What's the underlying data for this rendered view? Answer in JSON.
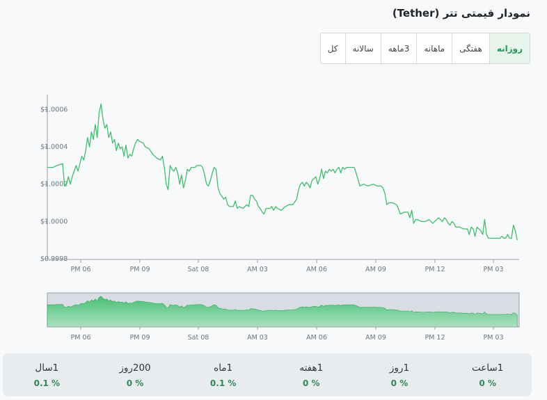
{
  "header": {
    "title": "نمودار قیمتی تتر (Tether)"
  },
  "tabs": [
    {
      "label": "روزانه",
      "active": true
    },
    {
      "label": "هفتگی",
      "active": false
    },
    {
      "label": "ماهانه",
      "active": false
    },
    {
      "label": "3ماهه",
      "active": false
    },
    {
      "label": "سالانه",
      "active": false
    },
    {
      "label": "کل",
      "active": false
    }
  ],
  "colors": {
    "line": "#3cbf6a",
    "accent": "#1f9d55",
    "positive": "#2e8b57"
  },
  "chart_data": {
    "type": "line",
    "title": "",
    "xlabel": "",
    "ylabel": "",
    "x_ticks": [
      "PM 06",
      "PM 09",
      "Sat 08",
      "AM 03",
      "AM 06",
      "AM 09",
      "PM 12",
      "PM 03"
    ],
    "y_ticks": [
      "$1.0006",
      "$1.0004",
      "$1.0002",
      "$1.0000",
      "$0.9998"
    ],
    "ylim": [
      0.9998,
      1.00068
    ],
    "xlim": [
      0,
      24
    ],
    "series": [
      {
        "values": [
          [
            0,
            1.00029
          ],
          [
            0.3,
            1.00029
          ],
          [
            0.5,
            1.0003
          ],
          [
            0.8,
            1.00031
          ],
          [
            0.9,
            1.00019
          ],
          [
            1.0,
            1.0002
          ],
          [
            1.1,
            1.00024
          ],
          [
            1.2,
            1.0002
          ],
          [
            1.3,
            1.00024
          ],
          [
            1.5,
            1.0003
          ],
          [
            1.6,
            1.00027
          ],
          [
            1.8,
            1.00035
          ],
          [
            1.9,
            1.00033
          ],
          [
            2.0,
            1.00038
          ],
          [
            2.1,
            1.00045
          ],
          [
            2.2,
            1.0004
          ],
          [
            2.3,
            1.00048
          ],
          [
            2.4,
            1.00044
          ],
          [
            2.5,
            1.00052
          ],
          [
            2.6,
            1.00045
          ],
          [
            2.7,
            1.00058
          ],
          [
            2.8,
            1.00063
          ],
          [
            2.9,
            1.00055
          ],
          [
            3.0,
            1.0005
          ],
          [
            3.1,
            1.00052
          ],
          [
            3.2,
            1.00045
          ],
          [
            3.3,
            1.00048
          ],
          [
            3.4,
            1.00042
          ],
          [
            3.5,
            1.00044
          ],
          [
            3.6,
            1.00038
          ],
          [
            3.7,
            1.00042
          ],
          [
            3.8,
            1.00039
          ],
          [
            3.9,
            1.0004
          ],
          [
            4.0,
            1.00035
          ],
          [
            4.1,
            1.00041
          ],
          [
            4.2,
            1.00034
          ],
          [
            4.3,
            1.00036
          ],
          [
            4.4,
            1.00035
          ],
          [
            4.5,
            1.00039
          ],
          [
            4.6,
            1.00042
          ],
          [
            4.7,
            1.00044
          ],
          [
            4.8,
            1.00043
          ],
          [
            5.0,
            1.00042
          ],
          [
            5.1,
            1.0004
          ],
          [
            5.3,
            1.00039
          ],
          [
            5.5,
            1.00036
          ],
          [
            5.7,
            1.00034
          ],
          [
            5.9,
            1.00033
          ],
          [
            6.0,
            1.00035
          ],
          [
            6.1,
            1.00029
          ],
          [
            6.2,
            1.0002
          ],
          [
            6.3,
            1.00017
          ],
          [
            6.4,
            1.0003
          ],
          [
            6.5,
            1.00028
          ],
          [
            6.6,
            1.00027
          ],
          [
            6.7,
            1.00029
          ],
          [
            6.8,
            1.00026
          ],
          [
            6.9,
            1.0002
          ],
          [
            7.0,
            1.00025
          ],
          [
            7.1,
            1.00018
          ],
          [
            7.2,
            1.00022
          ],
          [
            7.3,
            1.00028
          ],
          [
            7.4,
            1.00027
          ],
          [
            7.5,
            1.00029
          ],
          [
            7.7,
            1.00029
          ],
          [
            7.8,
            1.0003
          ],
          [
            8.0,
            1.0003
          ],
          [
            8.1,
            1.00029
          ],
          [
            8.2,
            1.00025
          ],
          [
            8.3,
            1.0002
          ],
          [
            8.4,
            1.00019
          ],
          [
            8.5,
            1.00022
          ],
          [
            8.6,
            1.00026
          ],
          [
            8.7,
            1.00029
          ],
          [
            8.8,
            1.00028
          ],
          [
            8.9,
            1.00018
          ],
          [
            9.0,
            1.00015
          ],
          [
            9.2,
            1.00012
          ],
          [
            9.3,
            1.00013
          ],
          [
            9.4,
            1.00009
          ],
          [
            9.5,
            1.00008
          ],
          [
            9.6,
            1.00008
          ],
          [
            9.7,
            1.00008
          ],
          [
            9.8,
            1.00011
          ],
          [
            9.9,
            1.00007
          ],
          [
            10.0,
            1.00008
          ],
          [
            10.2,
            1.00007
          ],
          [
            10.4,
            1.00009
          ],
          [
            10.5,
            1.00008
          ],
          [
            10.6,
            1.00014
          ],
          [
            10.7,
            1.00014
          ],
          [
            10.8,
            1.00012
          ],
          [
            10.9,
            1.00011
          ],
          [
            11.0,
            1.00008
          ],
          [
            11.1,
            1.00007
          ],
          [
            11.2,
            1.00005
          ],
          [
            11.3,
            1.00004
          ],
          [
            11.4,
            1.00007
          ],
          [
            11.6,
            1.00007
          ],
          [
            11.7,
            1.00008
          ],
          [
            11.8,
            1.00006
          ],
          [
            11.9,
            1.00008
          ],
          [
            12.0,
            1.00007
          ],
          [
            12.2,
            1.00006
          ],
          [
            12.4,
            1.00008
          ],
          [
            12.6,
            1.00009
          ],
          [
            12.8,
            1.00009
          ],
          [
            13.0,
            1.00012
          ],
          [
            13.1,
            1.00017
          ],
          [
            13.2,
            1.0002
          ],
          [
            13.3,
            1.00021
          ],
          [
            13.4,
            1.00019
          ],
          [
            13.5,
            1.00021
          ],
          [
            13.6,
            1.0002
          ],
          [
            13.7,
            1.00018
          ],
          [
            13.8,
            1.00022
          ],
          [
            14.0,
            1.00024
          ],
          [
            14.1,
            1.0002
          ],
          [
            14.2,
            1.00023
          ],
          [
            14.3,
            1.00028
          ],
          [
            14.4,
            1.00023
          ],
          [
            14.5,
            1.00027
          ],
          [
            14.6,
            1.00026
          ],
          [
            14.7,
            1.00028
          ],
          [
            14.8,
            1.00027
          ],
          [
            14.9,
            1.00028
          ],
          [
            15.0,
            1.00026
          ],
          [
            15.1,
            1.00028
          ],
          [
            15.2,
            1.00029
          ],
          [
            15.3,
            1.00026
          ],
          [
            15.4,
            1.00029
          ],
          [
            15.5,
            1.00028
          ],
          [
            15.6,
            1.00029
          ],
          [
            15.8,
            1.00029
          ],
          [
            16.0,
            1.00029
          ],
          [
            16.1,
            1.00026
          ],
          [
            16.3,
            1.00019
          ],
          [
            16.5,
            1.0002
          ],
          [
            16.7,
            1.00019
          ],
          [
            17.0,
            1.0002
          ],
          [
            17.2,
            1.00019
          ],
          [
            17.4,
            1.00019
          ],
          [
            17.5,
            1.00018
          ],
          [
            17.6,
            1.00015
          ],
          [
            17.7,
            1.00009
          ],
          [
            17.8,
            1.0001
          ],
          [
            18.0,
            1.0001
          ],
          [
            18.2,
            1.00009
          ],
          [
            18.3,
            1.00007
          ],
          [
            18.4,
            1.00004
          ],
          [
            18.6,
            1.00005
          ],
          [
            18.8,
            1.00005
          ],
          [
            18.9,
            1.00002
          ],
          [
            19.0,
            1.00006
          ],
          [
            19.1,
            0.99999
          ],
          [
            19.2,
            1.00001
          ],
          [
            19.3,
            1.00001
          ],
          [
            19.5,
            1.0
          ],
          [
            19.7,
            1.0
          ],
          [
            19.9,
            1.00001
          ],
          [
            20.1,
            0.99999
          ],
          [
            20.3,
            1.00001
          ],
          [
            20.4,
            1.00002
          ],
          [
            20.5,
            1.00001
          ],
          [
            20.6,
            1.0
          ],
          [
            20.7,
            1.00002
          ],
          [
            20.8,
            1.00001
          ],
          [
            20.9,
            0.99999
          ],
          [
            21.0,
            0.99998
          ],
          [
            21.1,
            1.0
          ],
          [
            21.2,
            0.99999
          ],
          [
            21.3,
            0.99997
          ],
          [
            21.5,
            0.99997
          ],
          [
            21.7,
            0.99996
          ],
          [
            21.9,
            0.99996
          ],
          [
            22.0,
            0.99993
          ],
          [
            22.1,
            0.99997
          ],
          [
            22.2,
            0.99996
          ],
          [
            22.3,
            0.99992
          ],
          [
            22.4,
            0.99997
          ],
          [
            22.5,
            0.99996
          ],
          [
            22.6,
            0.99995
          ],
          [
            22.7,
            0.99993
          ],
          [
            22.8,
            1.00001
          ],
          [
            22.9,
            0.99993
          ],
          [
            23.0,
            0.99991
          ],
          [
            23.2,
            0.99991
          ],
          [
            23.4,
            0.99991
          ],
          [
            23.6,
            0.99991
          ],
          [
            23.7,
            0.99992
          ],
          [
            23.8,
            0.99991
          ],
          [
            23.9,
            0.99991
          ],
          [
            24.0,
            0.99993
          ],
          [
            24.1,
            0.99991
          ],
          [
            24.2,
            0.99991
          ],
          [
            24.3,
            0.99998
          ],
          [
            24.4,
            0.99995
          ],
          [
            24.5,
            0.9999
          ]
        ]
      }
    ],
    "grid": false,
    "navigator": true
  },
  "stats": [
    {
      "label": "1ساعت",
      "value": "0 %"
    },
    {
      "label": "1روز",
      "value": "0 %"
    },
    {
      "label": "1هفته",
      "value": "0 %"
    },
    {
      "label": "1ماه",
      "value": "0.1 %"
    },
    {
      "label": "200روز",
      "value": "0 %"
    },
    {
      "label": "1سال",
      "value": "0.1 %"
    }
  ]
}
